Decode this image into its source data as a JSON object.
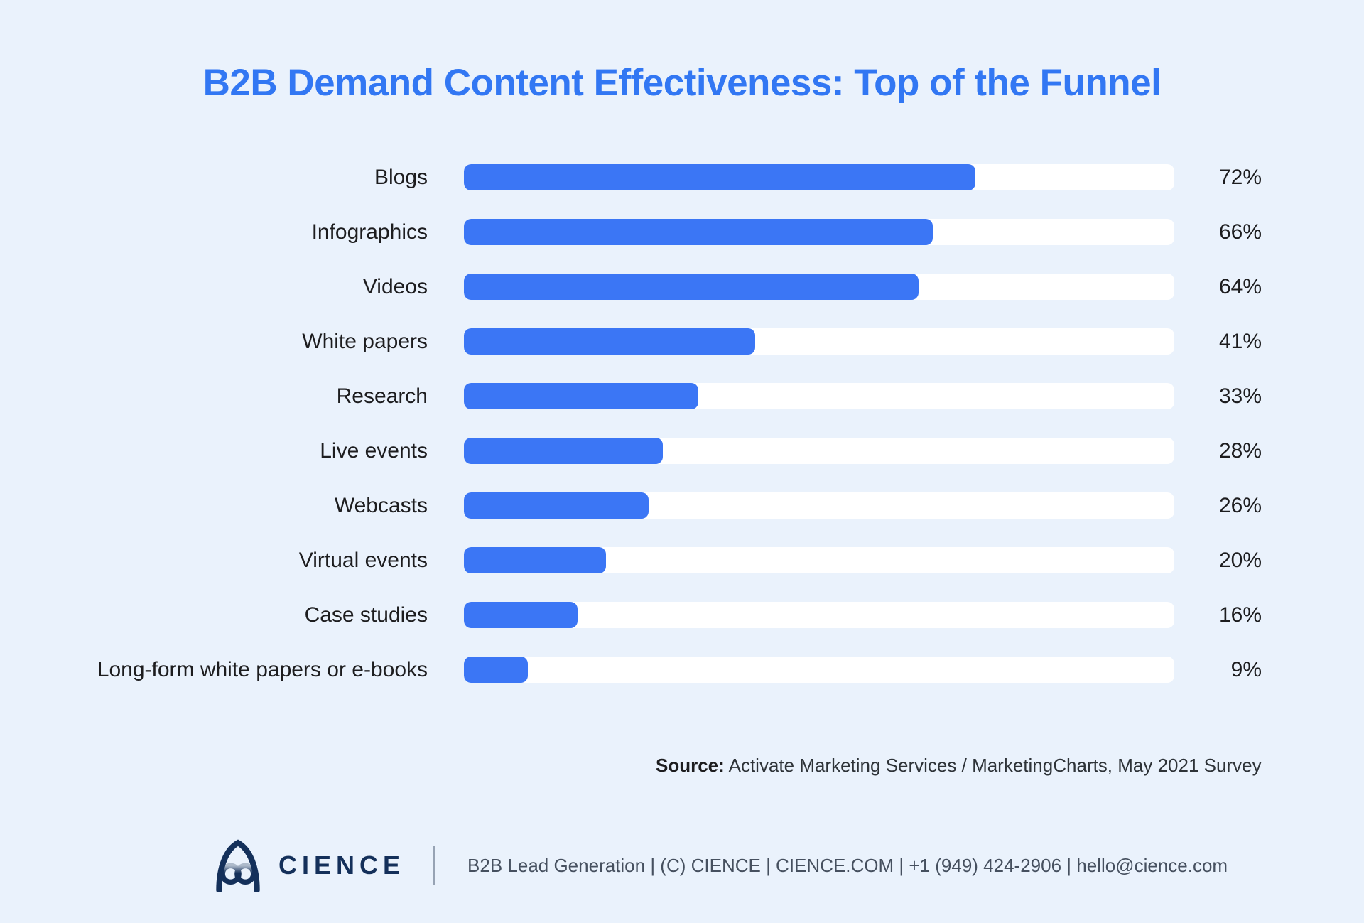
{
  "title": "B2B Demand Content Effectiveness: Top of the Funnel",
  "chart_data": {
    "type": "bar",
    "orientation": "horizontal",
    "title": "B2B Demand Content Effectiveness: Top of the Funnel",
    "categories": [
      "Blogs",
      "Infographics",
      "Videos",
      "White papers",
      "Research",
      "Live events",
      "Webcasts",
      "Virtual events",
      "Case studies",
      "Long-form white papers or e-books"
    ],
    "values": [
      72,
      66,
      64,
      41,
      33,
      28,
      26,
      20,
      16,
      9
    ],
    "value_labels": [
      "72%",
      "66%",
      "64%",
      "41%",
      "33%",
      "28%",
      "26%",
      "20%",
      "16%",
      "9%"
    ],
    "xlim": [
      0,
      100
    ],
    "grid": false,
    "legend": false,
    "bar_color": "#3B76F5",
    "track_color": "#FFFFFF"
  },
  "source": {
    "label": "Source:",
    "text": "Activate Marketing Services / MarketingCharts, May 2021 Survey"
  },
  "footer": {
    "brand": "CIENCE",
    "info": "B2B Lead Generation | (C) CIENCE | CIENCE.COM | +1 (949) 424-2906 | hello@cience.com"
  },
  "colors": {
    "background": "#EAF2FC",
    "title": "#3277F3",
    "bar": "#3B76F5",
    "track": "#FFFFFF",
    "text": "#1D1D1F",
    "navy": "#14305A",
    "footer_text": "#46505F"
  }
}
